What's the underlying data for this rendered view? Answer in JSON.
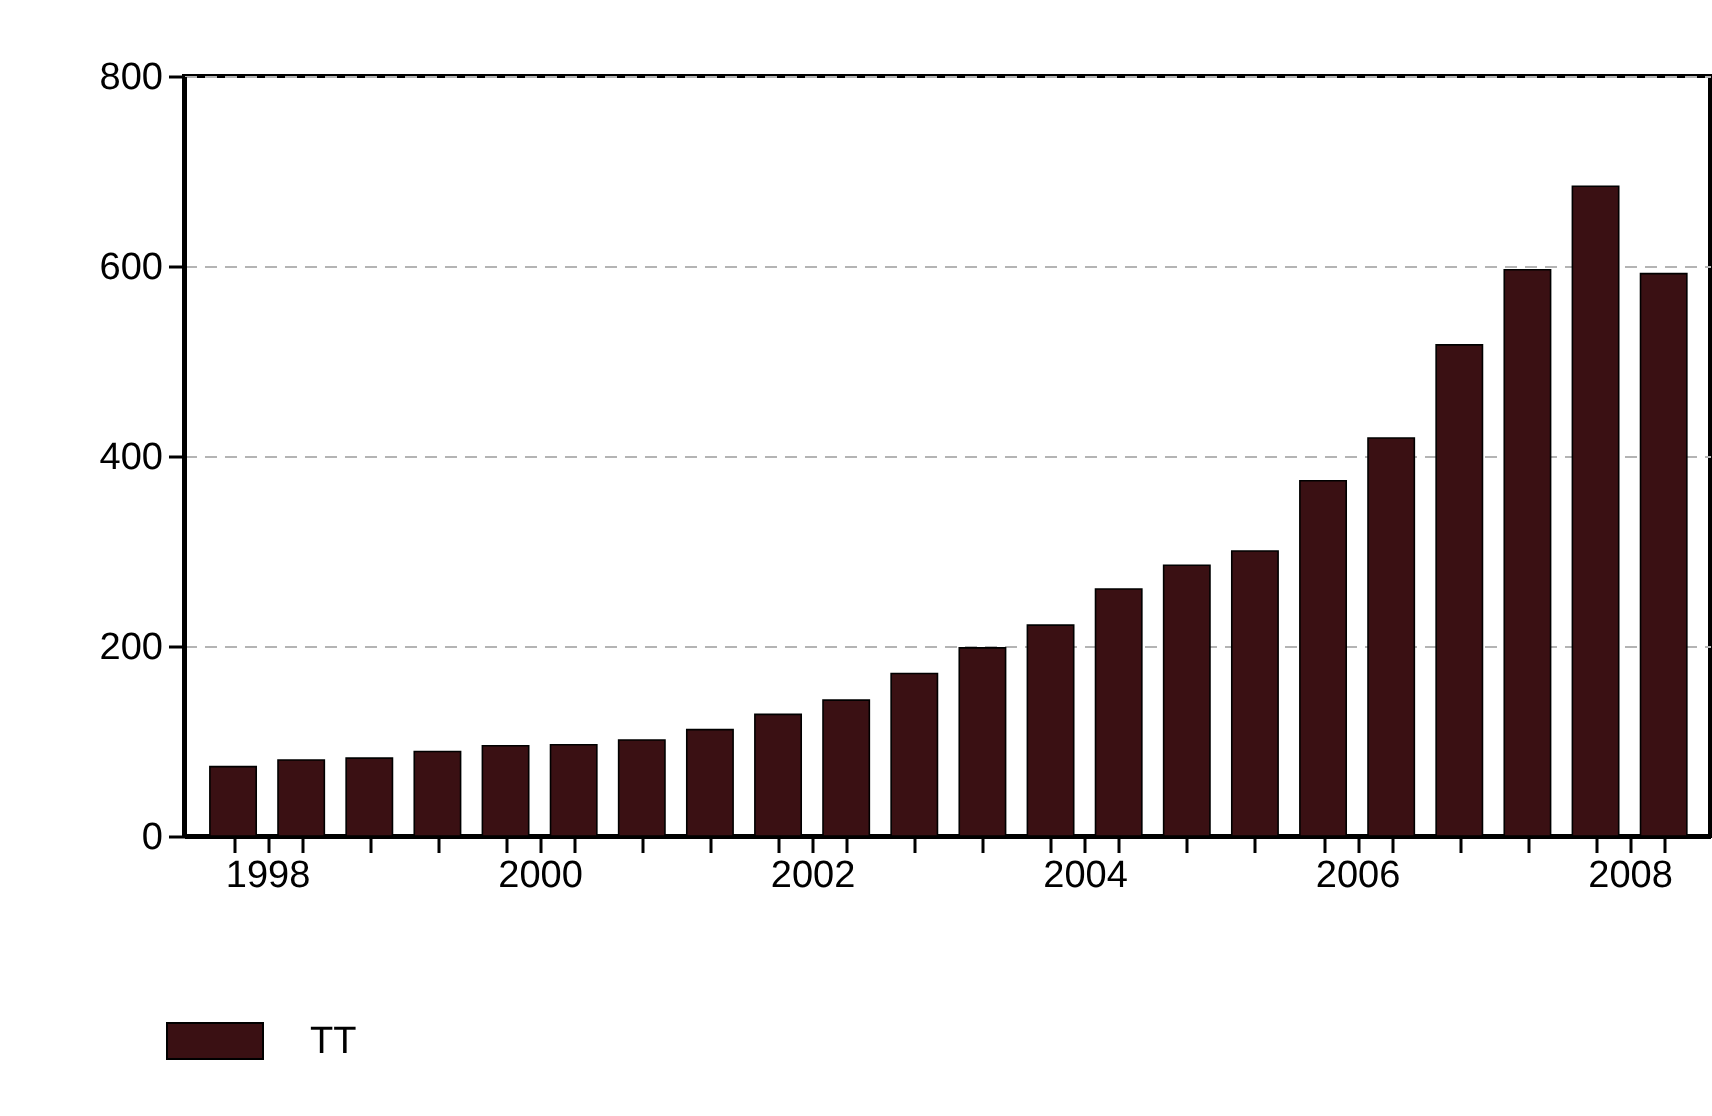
{
  "chart_data": {
    "type": "bar",
    "x": [
      1998,
      1998.5,
      1999,
      1999.5,
      2000,
      2000.5,
      2001,
      2001.5,
      2002,
      2002.5,
      2003,
      2003.5,
      2004,
      2004.5,
      2005,
      2005.5,
      2006,
      2006.5,
      2007,
      2007.5,
      2008,
      2008.5
    ],
    "series": [
      {
        "name": "TT",
        "color": "#3a1013",
        "values": [
          73,
          80,
          82,
          89,
          95,
          96,
          101,
          112,
          128,
          143,
          171,
          198,
          222,
          260,
          285,
          300,
          374,
          419,
          517,
          596,
          684,
          592
        ]
      }
    ],
    "xlim": [
      1997.64,
      2008.84
    ],
    "xticks": [
      {
        "value": 1998,
        "label": null
      },
      {
        "value": 1998.25,
        "label": "1998"
      },
      {
        "value": 1998.5,
        "label": null
      },
      {
        "value": 1999,
        "label": null
      },
      {
        "value": 1999.5,
        "label": null
      },
      {
        "value": 2000,
        "label": null
      },
      {
        "value": 2000.25,
        "label": "2000"
      },
      {
        "value": 2000.5,
        "label": null
      },
      {
        "value": 2001,
        "label": null
      },
      {
        "value": 2001.5,
        "label": null
      },
      {
        "value": 2002,
        "label": null
      },
      {
        "value": 2002.25,
        "label": "2002"
      },
      {
        "value": 2002.5,
        "label": null
      },
      {
        "value": 2003,
        "label": null
      },
      {
        "value": 2003.5,
        "label": null
      },
      {
        "value": 2004,
        "label": null
      },
      {
        "value": 2004.25,
        "label": "2004"
      },
      {
        "value": 2004.5,
        "label": null
      },
      {
        "value": 2005,
        "label": null
      },
      {
        "value": 2005.5,
        "label": null
      },
      {
        "value": 2006,
        "label": null
      },
      {
        "value": 2006.25,
        "label": "2006"
      },
      {
        "value": 2006.5,
        "label": null
      },
      {
        "value": 2007,
        "label": null
      },
      {
        "value": 2007.5,
        "label": null
      },
      {
        "value": 2008,
        "label": null
      },
      {
        "value": 2008.25,
        "label": "2008"
      },
      {
        "value": 2008.5,
        "label": null
      }
    ],
    "ylim": [
      0,
      800
    ],
    "yticks": [
      0,
      200,
      400,
      600,
      800
    ],
    "grid": "y",
    "legend": "bottom"
  }
}
